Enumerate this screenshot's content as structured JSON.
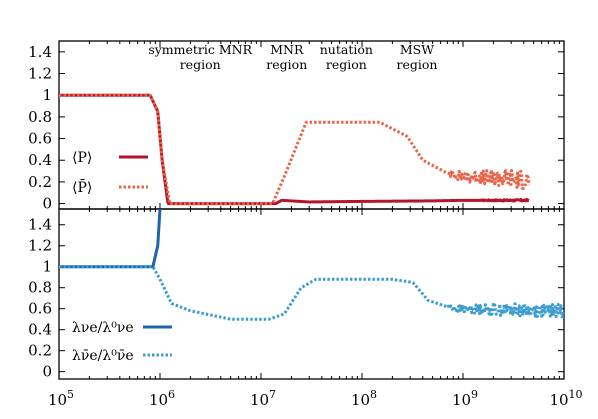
{
  "chart_data": [
    {
      "type": "line",
      "panel": "top",
      "title": "",
      "xlabel": "",
      "ylabel": "",
      "xscale": "log",
      "xlim": [
        100000,
        10000000000
      ],
      "ylim": [
        -0.05,
        1.5
      ],
      "yticks": [
        0,
        0.2,
        0.4,
        0.6,
        0.8,
        1,
        1.2,
        1.4
      ],
      "ytick_labels": [
        "0",
        "0.2",
        "0.4",
        "0.6",
        "0.8",
        "1",
        "1.2",
        "1.4"
      ],
      "grid": false,
      "legend_position": "left",
      "colors": {
        "P": "#b5152b",
        "Pbar": "#e8654a"
      },
      "annotations": [
        {
          "lines": [
            "symmetric MNR",
            "region"
          ],
          "x": 2500000,
          "y": 1.38
        },
        {
          "lines": [
            "MNR",
            "region"
          ],
          "x": 18000000,
          "y": 1.38
        },
        {
          "lines": [
            "nutation",
            "region"
          ],
          "x": 70000000,
          "y": 1.38
        },
        {
          "lines": [
            "MSW",
            "region"
          ],
          "x": 350000000,
          "y": 1.38
        }
      ],
      "series": [
        {
          "name": "⟨P⟩",
          "style": "solid",
          "x": [
            100000,
            800000,
            950000,
            1050000,
            1200000,
            14000000,
            16000000,
            30000000,
            100000000,
            500000000,
            1000000000,
            4500000000
          ],
          "y": [
            1.0,
            1.0,
            0.85,
            0.4,
            0.0,
            0.0,
            0.03,
            0.015,
            0.02,
            0.025,
            0.03,
            0.03
          ],
          "noise": {
            "from": 1500000000,
            "amplitude": 0.01
          }
        },
        {
          "name": "⟨P̄⟩",
          "style": "dotted",
          "x": [
            100000,
            800000,
            950000,
            1050000,
            1250000,
            13000000,
            17000000,
            28000000,
            150000000,
            280000000,
            400000000,
            700000000,
            1000000000,
            4500000000
          ],
          "y": [
            1.0,
            1.0,
            0.85,
            0.4,
            0.0,
            0.0,
            0.25,
            0.75,
            0.75,
            0.62,
            0.4,
            0.28,
            0.25,
            0.22
          ],
          "noise": {
            "from": 750000000,
            "amplitude": 0.09
          }
        }
      ]
    },
    {
      "type": "line",
      "panel": "bottom",
      "title": "",
      "xlabel": "",
      "ylabel": "",
      "xscale": "log",
      "xlim": [
        100000,
        10000000000
      ],
      "ylim": [
        -0.07,
        1.55
      ],
      "yticks": [
        0,
        0.2,
        0.4,
        0.6,
        0.8,
        1,
        1.2,
        1.4
      ],
      "ytick_labels": [
        "0",
        "0.2",
        "0.4",
        "0.6",
        "0.8",
        "1",
        "1.2",
        "1.4"
      ],
      "xticks": [
        100000,
        1000000,
        10000000,
        100000000,
        1000000000,
        10000000000
      ],
      "xtick_labels": [
        [
          "10",
          "5"
        ],
        [
          "10",
          "6"
        ],
        [
          "10",
          "7"
        ],
        [
          "10",
          "8"
        ],
        [
          "10",
          "9"
        ],
        [
          "10",
          "10"
        ]
      ],
      "grid": false,
      "legend_position": "bottom-left",
      "colors": {
        "nu": "#1f64a8",
        "nubar": "#3d9dd1"
      },
      "series": [
        {
          "name": "λνe/λ⁰νe",
          "style": "solid",
          "x": [
            100000,
            850000,
            950000,
            1000000
          ],
          "y": [
            1.0,
            1.0,
            1.2,
            1.55
          ]
        },
        {
          "name": "λν̄e/λ⁰ν̄e",
          "style": "dotted",
          "x": [
            100000,
            850000,
            1000000,
            1300000,
            2000000,
            5000000,
            12000000,
            17000000,
            25000000,
            35000000,
            200000000,
            320000000,
            450000000,
            800000000,
            10000000000
          ],
          "y": [
            1.0,
            1.0,
            0.88,
            0.65,
            0.58,
            0.5,
            0.5,
            0.55,
            0.8,
            0.88,
            0.88,
            0.85,
            0.68,
            0.6,
            0.58
          ],
          "noise": {
            "from": 700000000,
            "amplitude": 0.06
          }
        }
      ]
    }
  ]
}
